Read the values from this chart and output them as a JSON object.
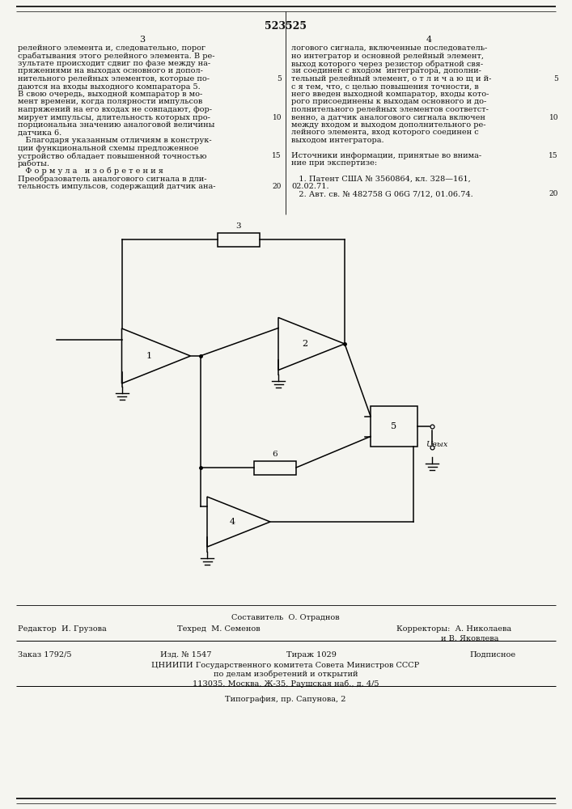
{
  "patent_number": "523525",
  "bg_color": "#f5f5f0",
  "text_color": "#111111",
  "page_left": "3",
  "page_right": "4"
}
